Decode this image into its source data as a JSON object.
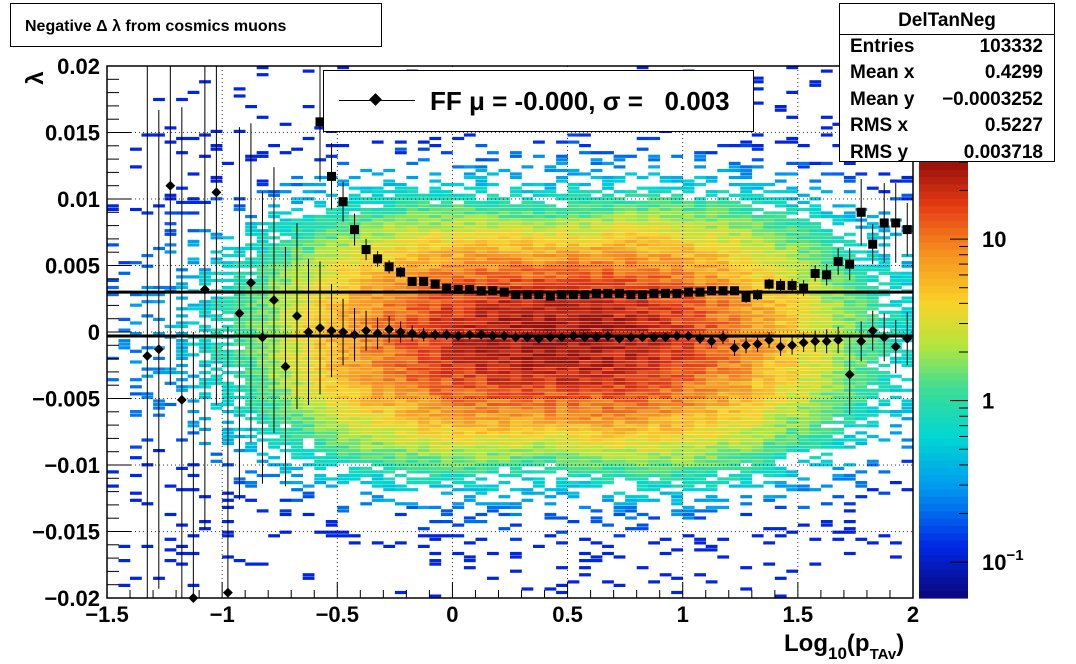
{
  "title": "Negative Δ λ from cosmics muons",
  "stats": {
    "name": "DelTanNeg",
    "rows": [
      {
        "key": "Entries",
        "value": "103332"
      },
      {
        "key": "Mean x",
        "value": "0.4299"
      },
      {
        "key": "Mean y",
        "value": "−0.0003252"
      },
      {
        "key": "RMS x",
        "value": "0.5227"
      },
      {
        "key": "RMS y",
        "value": "0.003718"
      }
    ]
  },
  "legend": {
    "label": "FF μ = -0.000, σ =   0.003"
  },
  "chart_data": {
    "type": "heatmap",
    "xlabel_main": "Log",
    "xlabel_sub1": "10",
    "xlabel_mid": "(p",
    "xlabel_sub2": "TAv",
    "xlabel_end": ")",
    "ylabel": "λ",
    "xlim": [
      -1.5,
      2
    ],
    "ylim": [
      -0.02,
      0.02
    ],
    "x_ticks": [
      "−1.5",
      "−1",
      "−0.5",
      "0",
      "0.5",
      "1",
      "1.5",
      "2"
    ],
    "x_tick_values": [
      -1.5,
      -1,
      -0.5,
      0,
      0.5,
      1,
      1.5,
      2
    ],
    "y_ticks": [
      "−0.02",
      "−0.015",
      "−0.01",
      "−0.005",
      "0",
      "0.005",
      "0.01",
      "0.015",
      "0.02"
    ],
    "y_tick_values": [
      -0.02,
      -0.015,
      -0.01,
      -0.005,
      0,
      0.005,
      0.01,
      0.015,
      0.02
    ],
    "grid": true,
    "colorbar": {
      "scale": "log",
      "min": 0.06,
      "max": 30,
      "ticks": [
        "10",
        "1",
        "10"
      ],
      "tick_values": [
        10,
        1,
        0.1
      ],
      "tick_exponents": [
        "",
        "",
        "−1"
      ]
    },
    "fit_lines": [
      {
        "name": "sigma",
        "y": 0.003
      },
      {
        "name": "mean",
        "y": -0.0003
      }
    ],
    "series": [
      {
        "name": "mean",
        "marker": "diamond",
        "x": [
          -1.325,
          -1.275,
          -1.225,
          -1.175,
          -1.125,
          -1.075,
          -1.025,
          -0.975,
          -0.925,
          -0.875,
          -0.825,
          -0.775,
          -0.725,
          -0.675,
          -0.625,
          -0.575,
          -0.525,
          -0.475,
          -0.425,
          -0.375,
          -0.325,
          -0.275,
          -0.225,
          -0.175,
          -0.125,
          -0.075,
          -0.025,
          0.025,
          0.075,
          0.125,
          0.175,
          0.225,
          0.275,
          0.325,
          0.375,
          0.425,
          0.475,
          0.525,
          0.575,
          0.625,
          0.675,
          0.725,
          0.775,
          0.825,
          0.875,
          0.925,
          0.975,
          1.025,
          1.075,
          1.125,
          1.175,
          1.225,
          1.275,
          1.325,
          1.375,
          1.425,
          1.475,
          1.525,
          1.575,
          1.625,
          1.675,
          1.725,
          1.775,
          1.825,
          1.875,
          1.925,
          1.975
        ],
        "y": [
          -0.0018,
          -0.0013,
          0.011,
          -0.0051,
          -0.02,
          0.0032,
          0.0105,
          -0.0196,
          0.0014,
          0.0037,
          -0.0004,
          0.0024,
          -0.0026,
          0.0012,
          0.0,
          0.0003,
          0.0001,
          0.0,
          -0.0002,
          0.0001,
          -0.0001,
          0.0002,
          0.0,
          -0.0001,
          -0.0002,
          -0.0002,
          -0.0002,
          -0.0003,
          -0.0002,
          -0.0002,
          -0.0003,
          -0.0003,
          -0.0004,
          -0.0004,
          -0.0005,
          -0.0004,
          -0.0004,
          -0.0003,
          -0.0004,
          -0.0004,
          -0.0003,
          -0.0005,
          -0.0004,
          -0.0004,
          -0.0004,
          -0.0004,
          -0.0003,
          -0.0003,
          -0.0005,
          -0.0007,
          -0.0004,
          -0.0012,
          -0.001,
          -0.0009,
          -0.0006,
          -0.0011,
          -0.001,
          -0.0008,
          -0.0007,
          -0.0007,
          -0.0006,
          -0.0032,
          -0.0007,
          0.0001,
          -0.0004,
          -0.0011,
          -0.0005
        ],
        "err": [
          0.022,
          0.018,
          0.015,
          0.022,
          0.02,
          0.018,
          0.016,
          0.02,
          0.014,
          0.012,
          0.011,
          0.01,
          0.009,
          0.007,
          0.0055,
          0.005,
          0.0035,
          0.0025,
          0.002,
          0.0015,
          0.0012,
          0.001,
          0.0008,
          0.0006,
          0.0005,
          0.0004,
          0.0004,
          0.0003,
          0.0003,
          0.0003,
          0.0003,
          0.0003,
          0.0003,
          0.0003,
          0.0003,
          0.0003,
          0.0003,
          0.0003,
          0.0003,
          0.0003,
          0.0003,
          0.0003,
          0.0003,
          0.0003,
          0.0003,
          0.0003,
          0.0003,
          0.0003,
          0.0004,
          0.0005,
          0.0005,
          0.0006,
          0.0006,
          0.0006,
          0.0006,
          0.0007,
          0.0007,
          0.0007,
          0.0008,
          0.0009,
          0.001,
          0.003,
          0.0015,
          0.0015,
          0.0018,
          0.002,
          0.002
        ]
      },
      {
        "name": "sigma",
        "marker": "square",
        "x": [
          -0.575,
          -0.525,
          -0.475,
          -0.425,
          -0.375,
          -0.325,
          -0.275,
          -0.225,
          -0.175,
          -0.125,
          -0.075,
          -0.025,
          0.025,
          0.075,
          0.125,
          0.175,
          0.225,
          0.275,
          0.325,
          0.375,
          0.425,
          0.475,
          0.525,
          0.575,
          0.625,
          0.675,
          0.725,
          0.775,
          0.825,
          0.875,
          0.925,
          0.975,
          1.025,
          1.075,
          1.125,
          1.175,
          1.225,
          1.275,
          1.325,
          1.375,
          1.425,
          1.475,
          1.525,
          1.575,
          1.625,
          1.675,
          1.725,
          1.775,
          1.825,
          1.875,
          1.925,
          1.975
        ],
        "y": [
          0.0158,
          0.0117,
          0.0098,
          0.0077,
          0.0062,
          0.0055,
          0.0049,
          0.0045,
          0.0038,
          0.0038,
          0.0036,
          0.0033,
          0.0032,
          0.0032,
          0.0031,
          0.0031,
          0.003,
          0.0028,
          0.0028,
          0.0028,
          0.0027,
          0.0028,
          0.0028,
          0.0028,
          0.0029,
          0.0029,
          0.0029,
          0.0028,
          0.0028,
          0.0029,
          0.0029,
          0.0029,
          0.003,
          0.003,
          0.0031,
          0.0031,
          0.0031,
          0.0026,
          0.0028,
          0.0036,
          0.0035,
          0.0035,
          0.0033,
          0.0044,
          0.0043,
          0.0053,
          0.0051,
          0.009,
          0.0066,
          0.0082,
          0.0082,
          0.0077
        ],
        "err": [
          0.0045,
          0.0025,
          0.0015,
          0.0012,
          0.0008,
          0.0006,
          0.0005,
          0.0004,
          0.0003,
          0.0003,
          0.0003,
          0.0002,
          0.0002,
          0.0002,
          0.0002,
          0.0002,
          0.0002,
          0.0002,
          0.0002,
          0.0002,
          0.0002,
          0.0002,
          0.0002,
          0.0002,
          0.0002,
          0.0002,
          0.0002,
          0.0002,
          0.0002,
          0.0002,
          0.0002,
          0.0002,
          0.0002,
          0.0003,
          0.0003,
          0.0003,
          0.0003,
          0.0004,
          0.0004,
          0.0004,
          0.0005,
          0.0005,
          0.0006,
          0.0006,
          0.0008,
          0.001,
          0.0012,
          0.0025,
          0.0015,
          0.003,
          0.003,
          0.002
        ]
      }
    ]
  }
}
